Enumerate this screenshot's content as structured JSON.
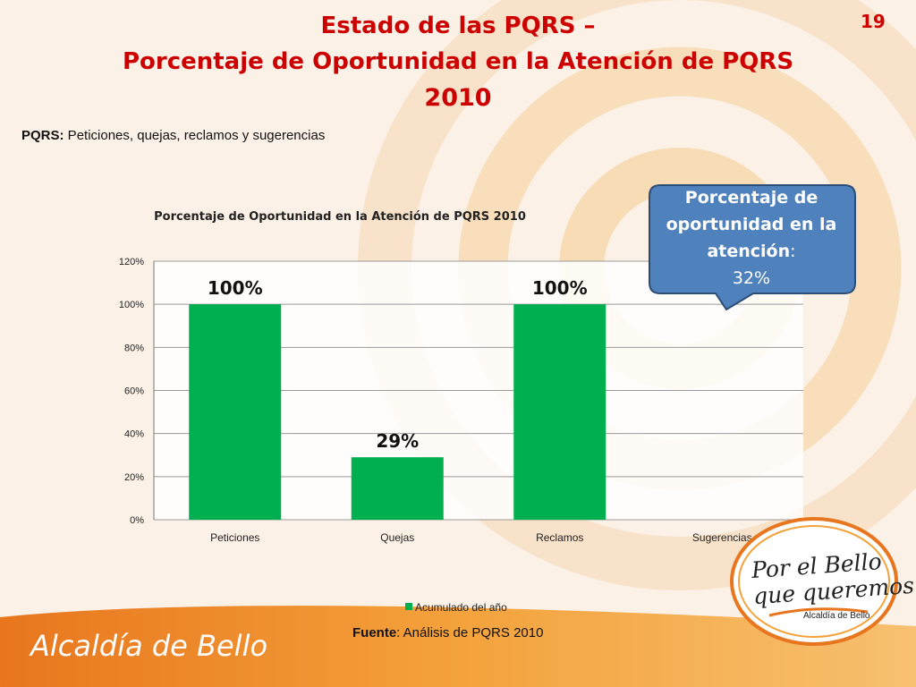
{
  "slide": {
    "title_line1": "Estado de las PQRS –",
    "title_line2": "Porcentaje de Oportunidad en la Atención de PQRS",
    "title_line3": "2010",
    "slide_number": "19",
    "definition_label": "PQRS:",
    "definition_text": " Peticiones, quejas, reclamos y sugerencias",
    "source_label": "Fuente",
    "source_text": ": Análisis de PQRS 2010",
    "footer_logo": "Alcaldía de Bello",
    "brand_line1": "Por el Bello",
    "brand_line2": "que queremos",
    "brand_small": "Alcaldía de Bello"
  },
  "callout": {
    "line1": "Porcentaje de",
    "line2": "oportunidad en la",
    "line3_bold": "atención",
    "line3_colon": ":",
    "value": "32%"
  },
  "colors": {
    "title": "#cc0000",
    "bar": "#00b050",
    "callout_fill": "#4f81bd",
    "callout_border": "#2c4d75"
  },
  "chart_data": {
    "type": "bar",
    "title": "Porcentaje de Oportunidad en la Atención de PQRS 2010",
    "categories": [
      "Peticiones",
      "Quejas",
      "Reclamos",
      "Sugerencias"
    ],
    "series": [
      {
        "name": "Acumulado del año",
        "values": [
          1.0,
          0.29,
          1.0,
          null
        ]
      }
    ],
    "data_labels": [
      "100%",
      "29%",
      "100%",
      ""
    ],
    "y_ticks": [
      "0%",
      "20%",
      "40%",
      "60%",
      "80%",
      "100%",
      "120%"
    ],
    "ylim": [
      0,
      1.2
    ],
    "grid": true,
    "legend": "bottom"
  }
}
